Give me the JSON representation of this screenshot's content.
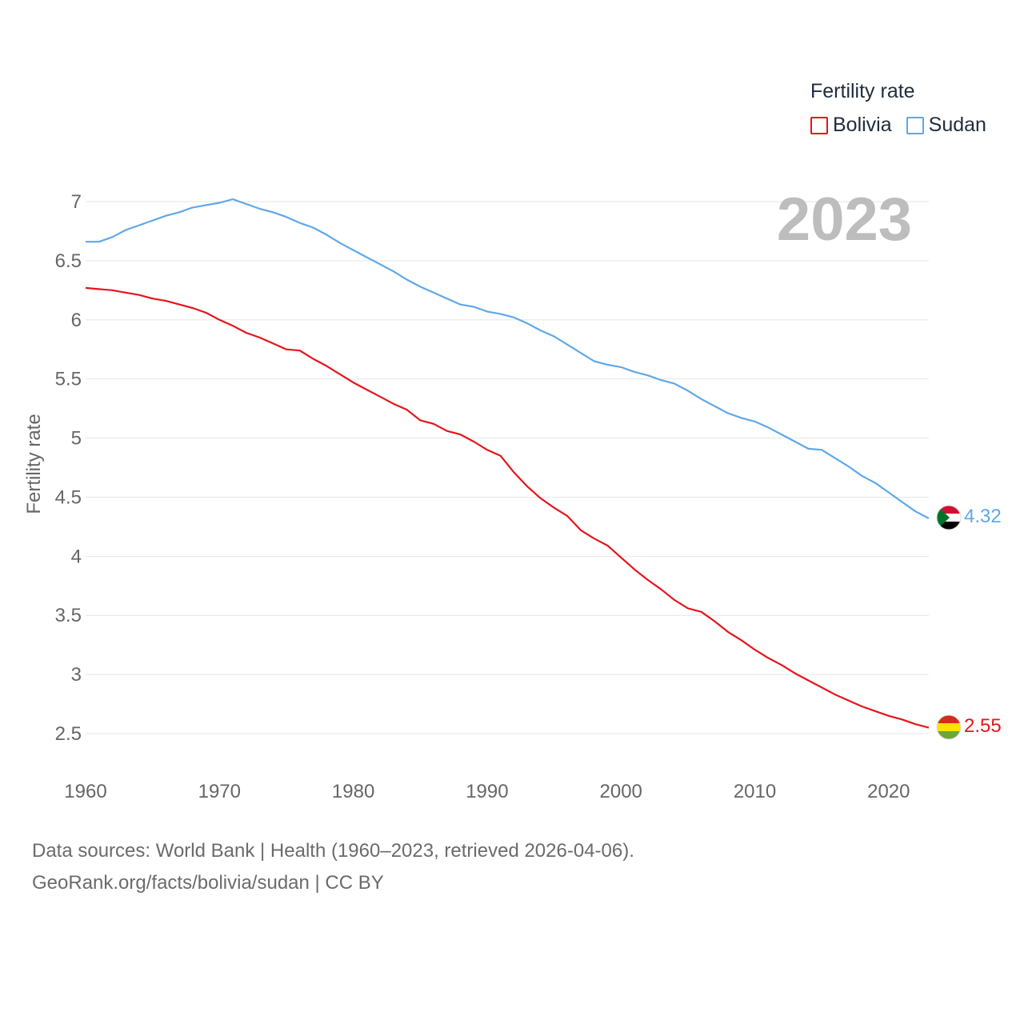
{
  "chart_data": {
    "type": "line",
    "title": "Fertility rate",
    "year_label": "2023",
    "ylabel": "Fertility rate",
    "xlabel": "",
    "ylim": [
      2.3,
      7.15
    ],
    "xlim": [
      1960,
      2023
    ],
    "xticks": [
      1960,
      1970,
      1980,
      1990,
      2000,
      2010,
      2020
    ],
    "yticks": [
      "2.5",
      "3",
      "3.5",
      "4",
      "4.5",
      "5",
      "5.5",
      "6",
      "6.5",
      "7"
    ],
    "grid": true,
    "legend_position": "top-right",
    "x": [
      1960,
      1961,
      1962,
      1963,
      1964,
      1965,
      1966,
      1967,
      1968,
      1969,
      1970,
      1971,
      1972,
      1973,
      1974,
      1975,
      1976,
      1977,
      1978,
      1979,
      1980,
      1981,
      1982,
      1983,
      1984,
      1985,
      1986,
      1987,
      1988,
      1989,
      1990,
      1991,
      1992,
      1993,
      1994,
      1995,
      1996,
      1997,
      1998,
      1999,
      2000,
      2001,
      2002,
      2003,
      2004,
      2005,
      2006,
      2007,
      2008,
      2009,
      2010,
      2011,
      2012,
      2013,
      2014,
      2015,
      2016,
      2017,
      2018,
      2019,
      2020,
      2021,
      2022,
      2023
    ],
    "series": [
      {
        "name": "Bolivia",
        "color": "#e8141b",
        "end_label": "2.55",
        "flag": "bolivia-flag",
        "values": [
          6.27,
          6.26,
          6.25,
          6.23,
          6.21,
          6.18,
          6.16,
          6.13,
          6.1,
          6.06,
          6.0,
          5.95,
          5.89,
          5.85,
          5.8,
          5.75,
          5.74,
          5.67,
          5.61,
          5.54,
          5.47,
          5.41,
          5.35,
          5.29,
          5.24,
          5.15,
          5.12,
          5.06,
          5.03,
          4.97,
          4.9,
          4.85,
          4.71,
          4.59,
          4.49,
          4.41,
          4.34,
          4.22,
          4.15,
          4.09,
          3.99,
          3.89,
          3.8,
          3.72,
          3.63,
          3.56,
          3.53,
          3.45,
          3.36,
          3.29,
          3.21,
          3.14,
          3.08,
          3.01,
          2.95,
          2.89,
          2.83,
          2.78,
          2.73,
          2.69,
          2.65,
          2.62,
          2.58,
          2.55
        ]
      },
      {
        "name": "Sudan",
        "color": "#5fa8e8",
        "end_label": "4.32",
        "flag": "sudan-flag",
        "values": [
          6.66,
          6.66,
          6.7,
          6.76,
          6.8,
          6.84,
          6.88,
          6.91,
          6.95,
          6.97,
          6.99,
          7.02,
          6.98,
          6.94,
          6.91,
          6.87,
          6.82,
          6.78,
          6.72,
          6.65,
          6.59,
          6.53,
          6.47,
          6.41,
          6.34,
          6.28,
          6.23,
          6.18,
          6.13,
          6.11,
          6.07,
          6.05,
          6.02,
          5.97,
          5.91,
          5.86,
          5.79,
          5.72,
          5.65,
          5.62,
          5.6,
          5.56,
          5.53,
          5.49,
          5.46,
          5.4,
          5.33,
          5.27,
          5.21,
          5.17,
          5.14,
          5.09,
          5.03,
          4.97,
          4.91,
          4.9,
          4.83,
          4.76,
          4.68,
          4.62,
          4.54,
          4.46,
          4.38,
          4.32
        ]
      }
    ]
  },
  "legend": {
    "title": "Fertility rate",
    "items": [
      {
        "label": "Bolivia",
        "color": "#e8141b"
      },
      {
        "label": "Sudan",
        "color": "#5fa8e8"
      }
    ]
  },
  "footer": {
    "line1": "Data sources: World Bank | Health (1960–2023, retrieved 2026-04-06).",
    "line2": "GeoRank.org/facts/bolivia/sudan | CC BY"
  }
}
